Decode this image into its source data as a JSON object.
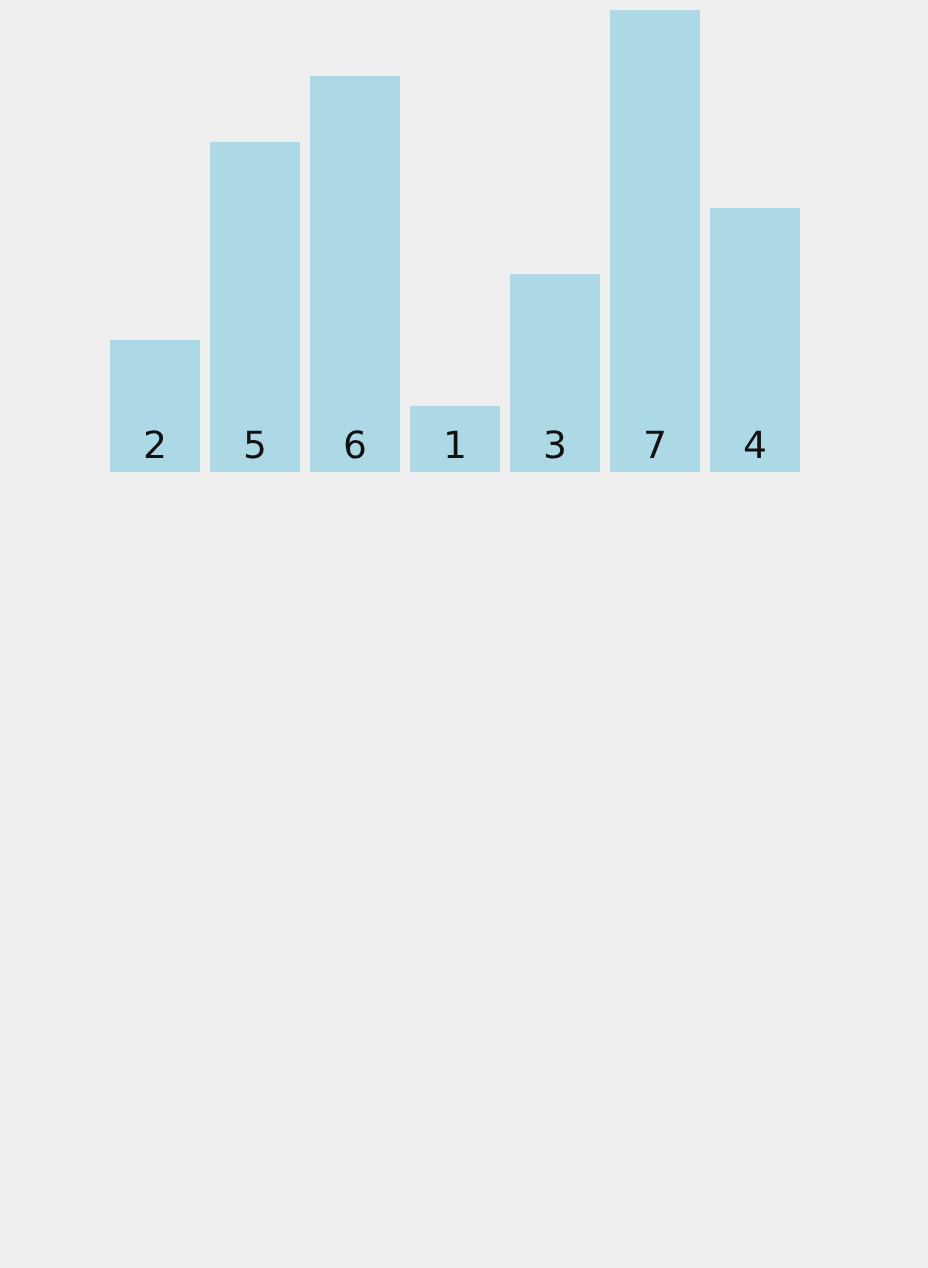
{
  "chart_data": {
    "type": "bar",
    "categories": [
      null,
      null,
      null,
      null,
      null,
      null,
      null
    ],
    "values": [
      2,
      5,
      6,
      1,
      3,
      7,
      4
    ],
    "color": "#add8e6",
    "data_labels": true,
    "tick_labels": false
  }
}
